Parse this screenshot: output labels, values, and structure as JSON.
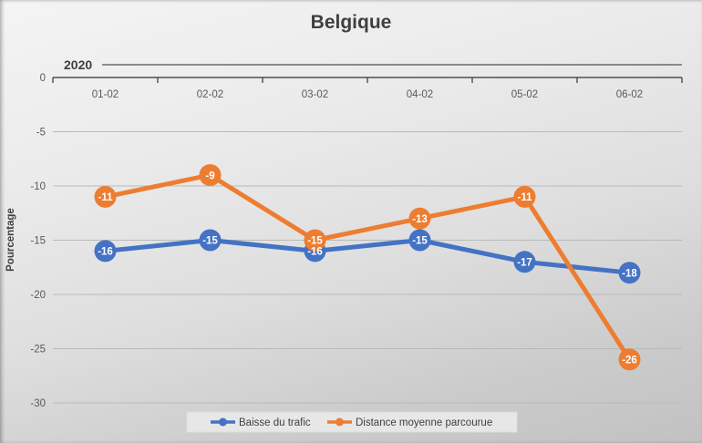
{
  "chart": {
    "title": "Belgique",
    "group_label": "2020",
    "ylabel": "Pourcentage"
  },
  "chart_data": {
    "type": "line",
    "title": "Belgique",
    "x_group_label": "2020",
    "categories": [
      "01-02",
      "02-02",
      "03-02",
      "04-02",
      "05-02",
      "06-02"
    ],
    "series": [
      {
        "name": "Baisse du trafic",
        "color": "#4472C4",
        "values": [
          -16,
          -15,
          -16,
          -15,
          -17,
          -18
        ]
      },
      {
        "name": "Distance moyenne parcourue",
        "color": "#ED7D31",
        "values": [
          -11,
          -9,
          -15,
          -13,
          -11,
          -26
        ]
      }
    ],
    "xlabel": "",
    "ylabel": "Pourcentage",
    "ylim": [
      -30,
      0
    ],
    "yticks": [
      0,
      -5,
      -10,
      -15,
      -20,
      -25,
      -30
    ],
    "grid": true,
    "data_labels": true,
    "marker": "circle",
    "legend_position": "bottom"
  },
  "colors": {
    "title_text": "#3f3f3f",
    "axis_text": "#595959",
    "year_text": "#404040",
    "gridline": "#b9b9b9",
    "axis_line": "#4f4f4f",
    "legend_bg": "#e7e7e7",
    "legend_border": "#dcdcdc",
    "legend_text": "#404040",
    "data_label_text": "#ffffff"
  }
}
